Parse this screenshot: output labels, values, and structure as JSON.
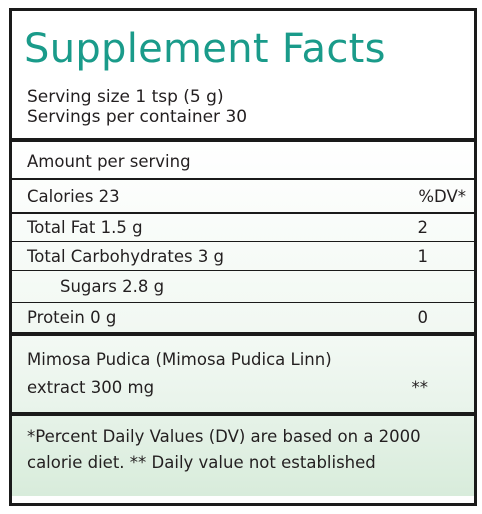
{
  "panel": {
    "title": "Supplement Facts",
    "serving_size": "Serving size 1 tsp (5 g)",
    "servings_per_container": "Servings per container 30"
  },
  "amount_per_serving": "Amount per serving",
  "calories": {
    "label": "Calories 23",
    "dv_header": "%DV*"
  },
  "nutrients": [
    {
      "label": "Total Fat 1.5 g",
      "dv": "2"
    },
    {
      "label": "Total Carbohydrates 3 g",
      "dv": "1"
    },
    {
      "label": "Sugars 2.8 g",
      "dv": ""
    },
    {
      "label": "Protein 0 g",
      "dv": "0"
    }
  ],
  "ingredient": {
    "line1": "Mimosa Pudica (Mimosa Pudica Linn)",
    "line2": "extract 300 mg",
    "dv": "**"
  },
  "footnote": {
    "line1": "*Percent Daily Values (DV) are based on a 2000",
    "line2": "calorie diet. ** Daily value not established"
  },
  "colors": {
    "title": "#1a9b8a",
    "text": "#231f20",
    "border": "#1a1a1a",
    "tint": "#d8ecdb"
  }
}
